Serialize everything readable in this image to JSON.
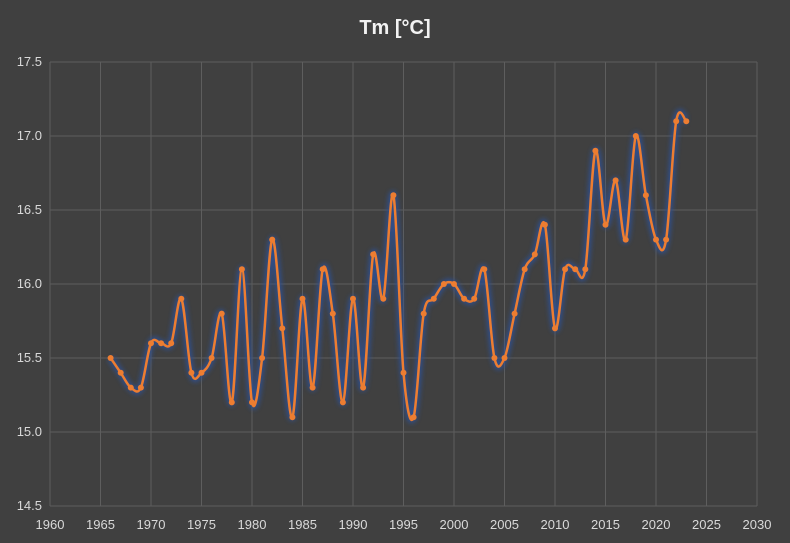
{
  "chart_data": {
    "type": "line",
    "title": "Tm [°C]",
    "xlabel": "",
    "ylabel": "",
    "xlim": [
      1960,
      2030
    ],
    "ylim": [
      14.5,
      17.5
    ],
    "grid": true,
    "x_ticks": [
      1960,
      1965,
      1970,
      1975,
      1980,
      1985,
      1990,
      1995,
      2000,
      2005,
      2010,
      2015,
      2020,
      2025,
      2030
    ],
    "y_ticks": [
      "14.5",
      "15.0",
      "15.5",
      "16.0",
      "16.5",
      "17.0",
      "17.5"
    ],
    "series": [
      {
        "name": "Tm [°C]",
        "color": "#ed7d31",
        "glow": "#2f4f8f",
        "x": [
          1966,
          1967,
          1968,
          1969,
          1970,
          1971,
          1972,
          1973,
          1974,
          1975,
          1976,
          1977,
          1978,
          1979,
          1980,
          1981,
          1982,
          1983,
          1984,
          1985,
          1986,
          1987,
          1988,
          1989,
          1990,
          1991,
          1992,
          1993,
          1994,
          1995,
          1996,
          1997,
          1998,
          1999,
          2000,
          2001,
          2002,
          2003,
          2004,
          2005,
          2006,
          2007,
          2008,
          2009,
          2010,
          2011,
          2012,
          2013,
          2014,
          2015,
          2016,
          2017,
          2018,
          2019,
          2020,
          2021,
          2022,
          2023
        ],
        "values": [
          15.5,
          15.4,
          15.3,
          15.3,
          15.6,
          15.6,
          15.6,
          15.9,
          15.4,
          15.4,
          15.5,
          15.8,
          15.2,
          16.1,
          15.2,
          15.5,
          16.3,
          15.7,
          15.1,
          15.9,
          15.3,
          16.1,
          15.8,
          15.2,
          15.9,
          15.3,
          16.2,
          15.9,
          16.6,
          15.4,
          15.1,
          15.8,
          15.9,
          16.0,
          16.0,
          15.9,
          15.9,
          16.1,
          15.5,
          15.5,
          15.8,
          16.1,
          16.2,
          16.4,
          15.7,
          16.1,
          16.1,
          16.1,
          16.9,
          16.4,
          16.7,
          16.3,
          17.0,
          16.6,
          16.3,
          16.3,
          17.1,
          17.1
        ]
      }
    ]
  }
}
